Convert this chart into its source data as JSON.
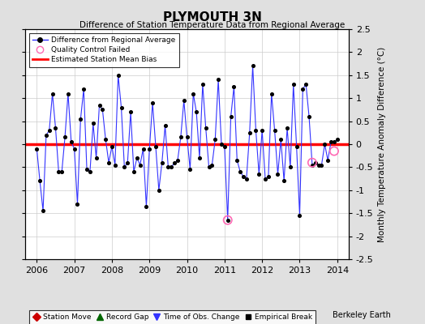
{
  "title": "PLYMOUTH 3N",
  "subtitle": "Difference of Station Temperature Data from Regional Average",
  "ylabel": "Monthly Temperature Anomaly Difference (°C)",
  "bias_value": 0.0,
  "ylim": [
    -2.5,
    2.5
  ],
  "xlim": [
    2005.7,
    2014.3
  ],
  "xticks": [
    2006,
    2007,
    2008,
    2009,
    2010,
    2011,
    2012,
    2013,
    2014
  ],
  "yticks": [
    -2.5,
    -2,
    -1.5,
    -1,
    -0.5,
    0,
    0.5,
    1,
    1.5,
    2,
    2.5
  ],
  "background_color": "#e0e0e0",
  "plot_bg_color": "#ffffff",
  "line_color": "#3333ff",
  "marker_color": "#000000",
  "bias_color": "#ff0000",
  "qc_fail_color": "#ff69b4",
  "time_series": [
    [
      2006.0,
      -0.1
    ],
    [
      2006.083,
      -0.8
    ],
    [
      2006.167,
      -1.45
    ],
    [
      2006.25,
      0.2
    ],
    [
      2006.333,
      0.3
    ],
    [
      2006.417,
      1.1
    ],
    [
      2006.5,
      0.35
    ],
    [
      2006.583,
      -0.6
    ],
    [
      2006.667,
      -0.6
    ],
    [
      2006.75,
      0.15
    ],
    [
      2006.833,
      1.1
    ],
    [
      2006.917,
      0.05
    ],
    [
      2007.0,
      -0.1
    ],
    [
      2007.083,
      -1.3
    ],
    [
      2007.167,
      0.55
    ],
    [
      2007.25,
      1.2
    ],
    [
      2007.333,
      -0.55
    ],
    [
      2007.417,
      -0.6
    ],
    [
      2007.5,
      0.45
    ],
    [
      2007.583,
      -0.3
    ],
    [
      2007.667,
      0.85
    ],
    [
      2007.75,
      0.75
    ],
    [
      2007.833,
      0.1
    ],
    [
      2007.917,
      -0.4
    ],
    [
      2008.0,
      -0.05
    ],
    [
      2008.083,
      -0.45
    ],
    [
      2008.167,
      1.5
    ],
    [
      2008.25,
      0.8
    ],
    [
      2008.333,
      -0.5
    ],
    [
      2008.417,
      -0.4
    ],
    [
      2008.5,
      0.7
    ],
    [
      2008.583,
      -0.6
    ],
    [
      2008.667,
      -0.3
    ],
    [
      2008.75,
      -0.45
    ],
    [
      2008.833,
      -0.1
    ],
    [
      2008.917,
      -1.35
    ],
    [
      2009.0,
      -0.1
    ],
    [
      2009.083,
      0.9
    ],
    [
      2009.167,
      -0.05
    ],
    [
      2009.25,
      -1.0
    ],
    [
      2009.333,
      -0.4
    ],
    [
      2009.417,
      0.4
    ],
    [
      2009.5,
      -0.5
    ],
    [
      2009.583,
      -0.5
    ],
    [
      2009.667,
      -0.4
    ],
    [
      2009.75,
      -0.35
    ],
    [
      2009.833,
      0.15
    ],
    [
      2009.917,
      0.95
    ],
    [
      2010.0,
      0.15
    ],
    [
      2010.083,
      -0.55
    ],
    [
      2010.167,
      1.1
    ],
    [
      2010.25,
      0.7
    ],
    [
      2010.333,
      -0.3
    ],
    [
      2010.417,
      1.3
    ],
    [
      2010.5,
      0.35
    ],
    [
      2010.583,
      -0.5
    ],
    [
      2010.667,
      -0.45
    ],
    [
      2010.75,
      0.1
    ],
    [
      2010.833,
      1.4
    ],
    [
      2010.917,
      0.0
    ],
    [
      2011.0,
      -0.05
    ],
    [
      2011.083,
      -1.65
    ],
    [
      2011.167,
      0.6
    ],
    [
      2011.25,
      1.25
    ],
    [
      2011.333,
      -0.35
    ],
    [
      2011.417,
      -0.6
    ],
    [
      2011.5,
      -0.7
    ],
    [
      2011.583,
      -0.75
    ],
    [
      2011.667,
      0.25
    ],
    [
      2011.75,
      1.7
    ],
    [
      2011.833,
      0.3
    ],
    [
      2011.917,
      -0.65
    ],
    [
      2012.0,
      0.3
    ],
    [
      2012.083,
      -0.75
    ],
    [
      2012.167,
      -0.7
    ],
    [
      2012.25,
      1.1
    ],
    [
      2012.333,
      0.3
    ],
    [
      2012.417,
      -0.65
    ],
    [
      2012.5,
      0.1
    ],
    [
      2012.583,
      -0.8
    ],
    [
      2012.667,
      0.35
    ],
    [
      2012.75,
      -0.5
    ],
    [
      2012.833,
      1.3
    ],
    [
      2012.917,
      -0.05
    ],
    [
      2013.0,
      -1.55
    ],
    [
      2013.083,
      1.2
    ],
    [
      2013.167,
      1.3
    ],
    [
      2013.25,
      0.6
    ],
    [
      2013.333,
      -0.45
    ],
    [
      2013.417,
      -0.4
    ],
    [
      2013.5,
      -0.45
    ],
    [
      2013.583,
      -0.45
    ],
    [
      2013.667,
      0.0
    ],
    [
      2013.75,
      -0.35
    ],
    [
      2013.833,
      0.05
    ],
    [
      2013.917,
      0.05
    ],
    [
      2014.0,
      0.1
    ]
  ],
  "qc_fail_points": [
    [
      2011.083,
      -1.65
    ],
    [
      2013.333,
      -0.4
    ],
    [
      2013.917,
      -0.15
    ]
  ],
  "legend2_items": [
    {
      "label": "Station Move",
      "color": "#cc0000",
      "marker": "D"
    },
    {
      "label": "Record Gap",
      "color": "#006600",
      "marker": "^"
    },
    {
      "label": "Time of Obs. Change",
      "color": "#3333ff",
      "marker": "v"
    },
    {
      "label": "Empirical Break",
      "color": "#000000",
      "marker": "s"
    }
  ]
}
